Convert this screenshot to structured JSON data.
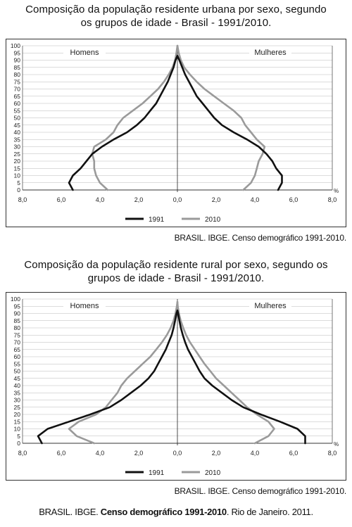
{
  "chart_data": [
    {
      "type": "line",
      "title": "Composição da população residente urbana por sexo, segundo os grupos de idade - Brasil - 1991/2010.",
      "title_lines": [
        "Composição da população residente urbana por sexo, segundo",
        "os grupos de idade - Brasil - 1991/2010."
      ],
      "left_label": "Homens",
      "right_label": "Mulheres",
      "x_tick_labels": [
        "8,0",
        "6,0",
        "4,0",
        "2,0",
        "0,0",
        "2,0",
        "4,0",
        "6,0",
        "8,0"
      ],
      "x_unit": "%",
      "xlim": [
        -8,
        8
      ],
      "ylim": [
        0,
        100
      ],
      "y_ticks": [
        0,
        5,
        10,
        15,
        20,
        25,
        30,
        35,
        40,
        45,
        50,
        55,
        60,
        65,
        70,
        75,
        80,
        85,
        90,
        95,
        100
      ],
      "grid": true,
      "legend_position": "bottom-center",
      "source": "BRASIL. IBGE. Censo demográfico 1991-2010.",
      "series": [
        {
          "name": "1991",
          "color": "#111111",
          "y": [
            0,
            5,
            10,
            15,
            20,
            25,
            30,
            35,
            40,
            45,
            50,
            55,
            60,
            65,
            70,
            75,
            80,
            85,
            90,
            93
          ],
          "men": [
            -5.4,
            -5.6,
            -5.4,
            -5.0,
            -4.7,
            -4.4,
            -3.9,
            -3.3,
            -2.6,
            -2.1,
            -1.7,
            -1.4,
            -1.1,
            -0.9,
            -0.7,
            -0.5,
            -0.35,
            -0.2,
            -0.1,
            0
          ],
          "women": [
            5.2,
            5.4,
            5.4,
            5.1,
            4.9,
            4.6,
            4.2,
            3.6,
            2.9,
            2.3,
            1.9,
            1.6,
            1.3,
            1.0,
            0.8,
            0.6,
            0.4,
            0.25,
            0.1,
            0
          ]
        },
        {
          "name": "2010",
          "color": "#9a9a9a",
          "y": [
            0,
            5,
            10,
            15,
            20,
            25,
            30,
            35,
            40,
            45,
            50,
            55,
            60,
            65,
            70,
            75,
            80,
            85,
            90,
            95,
            100
          ],
          "men": [
            -3.6,
            -4.0,
            -4.2,
            -4.3,
            -4.3,
            -4.4,
            -4.3,
            -3.7,
            -3.3,
            -3.1,
            -2.8,
            -2.3,
            -1.8,
            -1.4,
            -1.0,
            -0.7,
            -0.45,
            -0.25,
            -0.12,
            -0.05,
            0
          ],
          "women": [
            3.4,
            3.8,
            4.0,
            4.1,
            4.2,
            4.4,
            4.5,
            4.1,
            3.8,
            3.5,
            3.3,
            2.9,
            2.4,
            1.9,
            1.4,
            1.0,
            0.65,
            0.35,
            0.18,
            0.07,
            0
          ]
        }
      ]
    },
    {
      "type": "line",
      "title": "Composição da população residente rural por sexo, segundo os grupos de idade - Brasil - 1991/2010.",
      "title_lines": [
        "Composição da população residente rural por sexo, segundo os",
        "grupos de idade - Brasil - 1991/2010."
      ],
      "left_label": "Homens",
      "right_label": "Mulheres",
      "x_tick_labels": [
        "8,0",
        "6,0",
        "4,0",
        "2,0",
        "0,0",
        "2,0",
        "4,0",
        "6,0",
        "8,0"
      ],
      "x_unit": "%",
      "xlim": [
        -8,
        8
      ],
      "ylim": [
        0,
        100
      ],
      "y_ticks": [
        0,
        5,
        10,
        15,
        20,
        25,
        30,
        35,
        40,
        45,
        50,
        55,
        60,
        65,
        70,
        75,
        80,
        85,
        90,
        95,
        100
      ],
      "grid": true,
      "legend_position": "bottom-center",
      "source": "BRASIL. IBGE. Censo demográfico 1991-2010.",
      "series": [
        {
          "name": "1991",
          "color": "#111111",
          "y": [
            0,
            5,
            10,
            15,
            20,
            25,
            30,
            35,
            40,
            45,
            50,
            55,
            60,
            65,
            70,
            75,
            80,
            85,
            90,
            92
          ],
          "men": [
            -7.0,
            -7.2,
            -6.7,
            -5.6,
            -4.5,
            -3.5,
            -2.9,
            -2.4,
            -1.9,
            -1.5,
            -1.2,
            -1.0,
            -0.8,
            -0.6,
            -0.45,
            -0.3,
            -0.2,
            -0.12,
            -0.05,
            0
          ],
          "women": [
            6.6,
            6.6,
            6.2,
            5.3,
            4.3,
            3.4,
            2.8,
            2.3,
            1.8,
            1.4,
            1.15,
            0.95,
            0.75,
            0.55,
            0.4,
            0.28,
            0.18,
            0.1,
            0.04,
            0
          ]
        },
        {
          "name": "2010",
          "color": "#9a9a9a",
          "y": [
            0,
            5,
            10,
            15,
            20,
            25,
            30,
            35,
            40,
            45,
            50,
            55,
            60,
            65,
            70,
            75,
            80,
            85,
            90,
            95,
            98
          ],
          "men": [
            -4.3,
            -5.2,
            -5.6,
            -5.1,
            -4.2,
            -3.7,
            -3.4,
            -3.1,
            -2.9,
            -2.6,
            -2.2,
            -1.8,
            -1.4,
            -1.1,
            -0.8,
            -0.55,
            -0.35,
            -0.2,
            -0.1,
            -0.03,
            0
          ],
          "women": [
            4.0,
            4.7,
            5.0,
            4.7,
            4.1,
            3.6,
            3.2,
            2.8,
            2.4,
            2.0,
            1.7,
            1.4,
            1.15,
            0.9,
            0.65,
            0.45,
            0.3,
            0.17,
            0.08,
            0.02,
            0
          ]
        }
      ]
    }
  ],
  "footer": {
    "part1": "BRASIL. IBGE. ",
    "bold": "Censo demográfico 1991-2010",
    "part2": ". Rio de Janeiro. 2011."
  }
}
